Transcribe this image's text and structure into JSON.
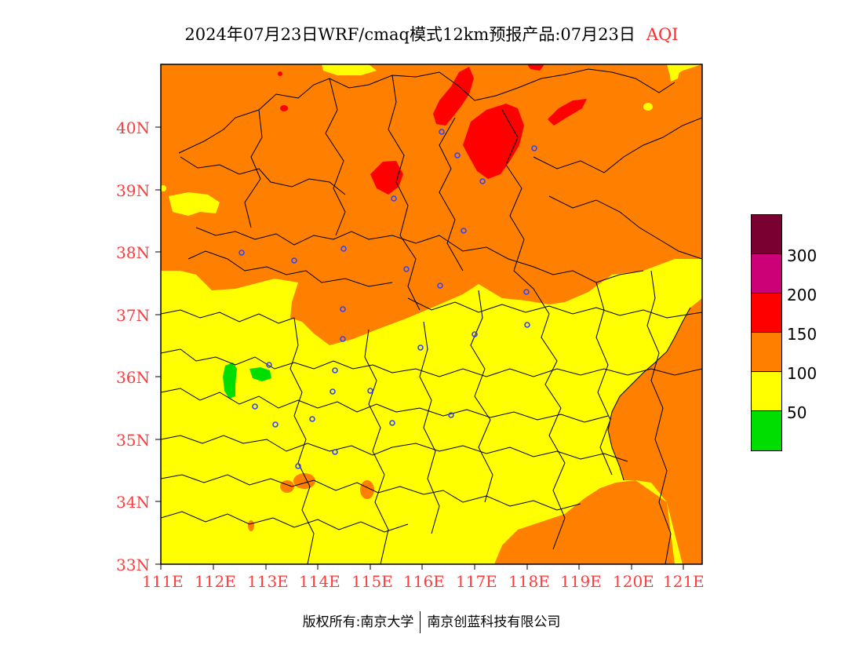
{
  "title": {
    "main": "2024年07月23日WRF/cmaq模式12km预报产品:07月23日",
    "variable": "AQI"
  },
  "axes": {
    "latitude_labels": [
      "40N",
      "39N",
      "38N",
      "37N",
      "36N",
      "35N",
      "34N",
      "33N"
    ],
    "longitude_labels": [
      "111E",
      "112E",
      "113E",
      "114E",
      "115E",
      "116E",
      "117E",
      "118E",
      "119E",
      "120E",
      "121E"
    ]
  },
  "legend": {
    "colors": [
      "#7a0032",
      "#cc0077",
      "#ff0000",
      "#ff7f00",
      "#ffff00",
      "#00dd00"
    ],
    "thresholds": [
      "300",
      "200",
      "150",
      "100",
      "50"
    ]
  },
  "palette": {
    "aqi_0_50": "#00dd00",
    "aqi_50_100": "#ffff00",
    "aqi_100_150": "#ff7f00",
    "aqi_150_200": "#ff0000",
    "city_marker": "#3344ff",
    "axis_text": "#ff3b3b"
  },
  "footer": {
    "left": "版权所有:南京大学",
    "right": "南京创蓝科技有限公司"
  }
}
